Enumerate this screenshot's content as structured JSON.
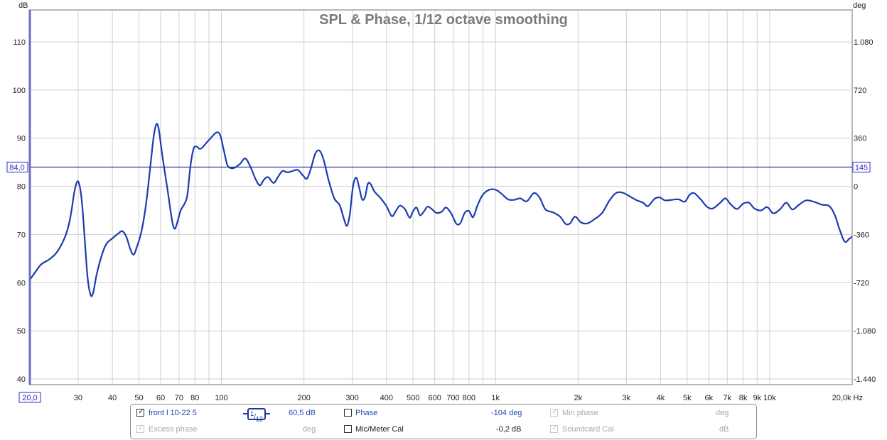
{
  "chart_data": {
    "type": "line",
    "title": "SPL & Phase, 1/12 octave smoothing",
    "xlabel": "Hz",
    "ylabel_left": "dB",
    "ylabel_right": "deg",
    "xscale": "log",
    "xlim": [
      20,
      20000
    ],
    "ylim": [
      38,
      118
    ],
    "y2lim": [
      -1584,
      1296
    ],
    "grid": true,
    "x_ticks": [
      {
        "value": 20,
        "label": "20,0",
        "boxed": true
      },
      {
        "value": 30,
        "label": "30"
      },
      {
        "value": 40,
        "label": "40"
      },
      {
        "value": 50,
        "label": "50"
      },
      {
        "value": 60,
        "label": "60"
      },
      {
        "value": 70,
        "label": "70"
      },
      {
        "value": 80,
        "label": "80"
      },
      {
        "value": 100,
        "label": "100"
      },
      {
        "value": 200,
        "label": "200"
      },
      {
        "value": 300,
        "label": "300"
      },
      {
        "value": 400,
        "label": "400"
      },
      {
        "value": 500,
        "label": "500"
      },
      {
        "value": 600,
        "label": "600"
      },
      {
        "value": 700,
        "label": "700"
      },
      {
        "value": 800,
        "label": "800"
      },
      {
        "value": 1000,
        "label": "1k"
      },
      {
        "value": 2000,
        "label": "2k"
      },
      {
        "value": 3000,
        "label": "3k"
      },
      {
        "value": 4000,
        "label": "4k"
      },
      {
        "value": 5000,
        "label": "5k"
      },
      {
        "value": 6000,
        "label": "6k"
      },
      {
        "value": 7000,
        "label": "7k"
      },
      {
        "value": 8000,
        "label": "8k"
      },
      {
        "value": 9000,
        "label": "9k"
      },
      {
        "value": 10000,
        "label": "10k"
      },
      {
        "value": 20000,
        "label": "20,0k Hz"
      }
    ],
    "x_gridlines": [
      30,
      40,
      50,
      60,
      70,
      80,
      90,
      100,
      200,
      300,
      400,
      500,
      600,
      700,
      800,
      900,
      1000,
      2000,
      3000,
      4000,
      5000,
      6000,
      7000,
      8000,
      9000,
      10000
    ],
    "y_ticks": [
      40,
      50,
      60,
      70,
      80,
      90,
      100,
      110
    ],
    "y2_ticks": [
      {
        "value": -1440,
        "label": "-1.440"
      },
      {
        "value": -1080,
        "label": "-1.080"
      },
      {
        "value": -720,
        "label": "-720"
      },
      {
        "value": -360,
        "label": "-360"
      },
      {
        "value": 0,
        "label": "0"
      },
      {
        "value": 360,
        "label": "360"
      },
      {
        "value": 720,
        "label": "720"
      },
      {
        "value": 1080,
        "label": "1.080"
      }
    ],
    "cursor": {
      "y_value": 84.0,
      "y_label": "84,0",
      "y2_label": "145"
    },
    "series": [
      {
        "name": "front l 10-22 5",
        "color": "#1a3cb0",
        "points": [
          [
            20,
            60.6
          ],
          [
            21,
            62.3
          ],
          [
            22,
            63.8
          ],
          [
            23.5,
            64.8
          ],
          [
            25,
            66.2
          ],
          [
            26.5,
            68.7
          ],
          [
            27.5,
            71.2
          ],
          [
            28.3,
            74.5
          ],
          [
            29,
            78.5
          ],
          [
            29.7,
            80.9
          ],
          [
            30.3,
            80.4
          ],
          [
            31,
            76.5
          ],
          [
            31.8,
            68
          ],
          [
            32.5,
            61
          ],
          [
            33.3,
            57.5
          ],
          [
            34,
            57.8
          ],
          [
            35,
            61.5
          ],
          [
            36.5,
            65.5
          ],
          [
            38,
            68
          ],
          [
            40,
            69.2
          ],
          [
            42,
            70.2
          ],
          [
            43.5,
            70.7
          ],
          [
            45,
            69.5
          ],
          [
            46.5,
            67
          ],
          [
            47.8,
            65.8
          ],
          [
            49,
            67.2
          ],
          [
            51,
            70.5
          ],
          [
            53,
            76
          ],
          [
            55,
            84
          ],
          [
            56.5,
            90
          ],
          [
            57.8,
            92.8
          ],
          [
            59,
            92
          ],
          [
            61,
            86
          ],
          [
            63.5,
            79.5
          ],
          [
            66,
            73
          ],
          [
            67.5,
            71.2
          ],
          [
            69,
            72.5
          ],
          [
            71,
            75
          ],
          [
            73,
            76.2
          ],
          [
            75,
            78
          ],
          [
            77,
            84
          ],
          [
            79,
            87.7
          ],
          [
            81,
            88.3
          ],
          [
            83,
            87.8
          ],
          [
            85,
            88
          ],
          [
            88,
            89
          ],
          [
            92,
            90.2
          ],
          [
            96,
            91.2
          ],
          [
            99,
            90.6
          ],
          [
            102,
            87.5
          ],
          [
            105,
            84.5
          ],
          [
            108,
            83.8
          ],
          [
            112,
            83.9
          ],
          [
            117,
            84.7
          ],
          [
            122,
            85.8
          ],
          [
            127,
            84.3
          ],
          [
            133,
            81.6
          ],
          [
            138,
            80.2
          ],
          [
            143,
            81.4
          ],
          [
            148,
            81.9
          ],
          [
            155,
            80.7
          ],
          [
            161,
            82
          ],
          [
            167,
            83.2
          ],
          [
            174,
            82.9
          ],
          [
            182,
            83.2
          ],
          [
            190,
            83.4
          ],
          [
            198,
            82.3
          ],
          [
            205,
            81.6
          ],
          [
            212,
            83.7
          ],
          [
            220,
            86.8
          ],
          [
            228,
            87.4
          ],
          [
            236,
            85.5
          ],
          [
            246,
            81.3
          ],
          [
            258,
            77.5
          ],
          [
            270,
            76.1
          ],
          [
            280,
            73.2
          ],
          [
            287,
            71.8
          ],
          [
            294,
            74.2
          ],
          [
            302,
            80
          ],
          [
            310,
            81.8
          ],
          [
            318,
            79.8
          ],
          [
            326,
            77.3
          ],
          [
            334,
            77.8
          ],
          [
            342,
            80.5
          ],
          [
            350,
            80.5
          ],
          [
            362,
            78.9
          ],
          [
            380,
            77.6
          ],
          [
            400,
            75.9
          ],
          [
            418,
            73.8
          ],
          [
            432,
            74.8
          ],
          [
            448,
            76
          ],
          [
            468,
            75.2
          ],
          [
            486,
            73.5
          ],
          [
            500,
            74.8
          ],
          [
            515,
            75.6
          ],
          [
            530,
            74
          ],
          [
            548,
            74.8
          ],
          [
            565,
            75.8
          ],
          [
            585,
            75.3
          ],
          [
            608,
            74.5
          ],
          [
            635,
            74.7
          ],
          [
            660,
            75.6
          ],
          [
            690,
            74.3
          ],
          [
            720,
            72.2
          ],
          [
            745,
            72.4
          ],
          [
            770,
            74.4
          ],
          [
            800,
            74.9
          ],
          [
            828,
            73.6
          ],
          [
            860,
            76.1
          ],
          [
            900,
            78.3
          ],
          [
            950,
            79.3
          ],
          [
            1000,
            79.3
          ],
          [
            1050,
            78.5
          ],
          [
            1110,
            77.3
          ],
          [
            1170,
            77.2
          ],
          [
            1230,
            77.5
          ],
          [
            1300,
            76.9
          ],
          [
            1380,
            78.6
          ],
          [
            1450,
            77.6
          ],
          [
            1520,
            75.2
          ],
          [
            1620,
            74.6
          ],
          [
            1720,
            73.7
          ],
          [
            1800,
            72.2
          ],
          [
            1870,
            72.3
          ],
          [
            1950,
            73.7
          ],
          [
            2050,
            72.5
          ],
          [
            2160,
            72.3
          ],
          [
            2300,
            73.2
          ],
          [
            2450,
            74.5
          ],
          [
            2600,
            77
          ],
          [
            2750,
            78.6
          ],
          [
            2900,
            78.7
          ],
          [
            3050,
            78.1
          ],
          [
            3250,
            77.2
          ],
          [
            3450,
            76.6
          ],
          [
            3600,
            75.9
          ],
          [
            3800,
            77.4
          ],
          [
            3970,
            77.7
          ],
          [
            4150,
            77.1
          ],
          [
            4400,
            77.2
          ],
          [
            4650,
            77.3
          ],
          [
            4900,
            76.8
          ],
          [
            5100,
            78.2
          ],
          [
            5300,
            78.6
          ],
          [
            5600,
            77.3
          ],
          [
            5900,
            75.8
          ],
          [
            6200,
            75.4
          ],
          [
            6600,
            76.6
          ],
          [
            6900,
            77.5
          ],
          [
            7200,
            76.3
          ],
          [
            7600,
            75.3
          ],
          [
            8000,
            76.4
          ],
          [
            8400,
            76.6
          ],
          [
            8800,
            75.4
          ],
          [
            9300,
            75
          ],
          [
            9800,
            75.7
          ],
          [
            10300,
            74.4
          ],
          [
            10900,
            75.2
          ],
          [
            11500,
            76.6
          ],
          [
            12100,
            75.2
          ],
          [
            12800,
            76.2
          ],
          [
            13600,
            77.1
          ],
          [
            14500,
            76.8
          ],
          [
            15500,
            76.2
          ],
          [
            16500,
            75.9
          ],
          [
            17300,
            74
          ],
          [
            18000,
            71
          ],
          [
            18800,
            68.5
          ],
          [
            19600,
            69.2
          ],
          [
            20200,
            69.5
          ],
          [
            20800,
            68.3
          ],
          [
            21500,
            67.5
          ]
        ]
      }
    ]
  },
  "legend": {
    "trace_name": "front l 10-22 5",
    "trace_checked": true,
    "smoothing_num": "1",
    "smoothing_den": "12",
    "spl_value": "60,5 dB",
    "phase_label": "Phase",
    "phase_checked": false,
    "phase_value": "-104 deg",
    "min_phase_label": "Min phase",
    "min_phase_unit": "deg",
    "excess_phase_label": "Excess phase",
    "excess_phase_unit": "deg",
    "mic_cal_label": "Mic/Meter Cal",
    "mic_cal_checked": false,
    "mic_cal_value": "-0,2 dB",
    "soundcard_cal_label": "Soundcard Cal",
    "soundcard_cal_unit": "dB"
  },
  "colors": {
    "trace": "#1a3cb0",
    "cursor": "#1c1ca8",
    "grid": "#cfcfcf",
    "title": "#7a7a7a"
  }
}
